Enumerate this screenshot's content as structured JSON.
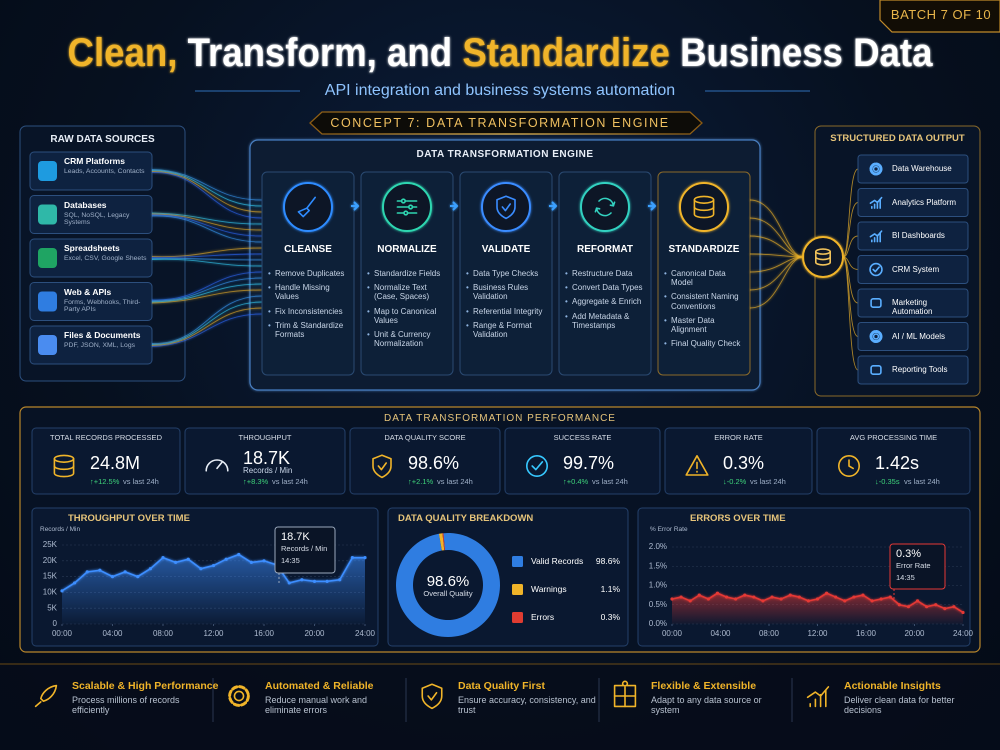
{
  "badge": "BATCH 7 OF 10",
  "title": [
    {
      "text": "Clean,",
      "color": "#f0b429"
    },
    {
      "text": "Transform, and",
      "color": "#ffffff"
    },
    {
      "text": "Standardize",
      "color": "#f0b429"
    },
    {
      "text": "Business Data",
      "color": "#ffffff"
    }
  ],
  "subtitle": "API integration and business systems automation",
  "concept": "CONCEPT 7: DATA TRANSFORMATION ENGINE",
  "sources": {
    "title": "RAW DATA SOURCES",
    "items": [
      {
        "name": "CRM Platforms",
        "desc": "Leads, Accounts, Contacts"
      },
      {
        "name": "Databases",
        "desc": "SQL, NoSQL, Legacy Systems"
      },
      {
        "name": "Spreadsheets",
        "desc": "Excel, CSV, Google Sheets"
      },
      {
        "name": "Web & APIs",
        "desc": "Forms, Webhooks, Third-Party APIs"
      },
      {
        "name": "Files & Documents",
        "desc": "PDF, JSON, XML, Logs"
      }
    ]
  },
  "engine": {
    "title": "DATA TRANSFORMATION ENGINE",
    "steps": [
      {
        "name": "CLEANSE",
        "color": "#2f8cff",
        "items": [
          "Remove Duplicates",
          "Handle Missing Values",
          "Fix Inconsistencies",
          "Trim & Standardize Formats"
        ]
      },
      {
        "name": "NORMALIZE",
        "color": "#2fd6b0",
        "items": [
          "Standardize Fields",
          "Normalize Text (Case, Spaces)",
          "Map to Canonical Values",
          "Unit & Currency Normalization"
        ]
      },
      {
        "name": "VALIDATE",
        "color": "#3a8cff",
        "items": [
          "Data Type Checks",
          "Business Rules Validation",
          "Referential Integrity",
          "Range & Format Validation"
        ]
      },
      {
        "name": "REFORMAT",
        "color": "#33d1c0",
        "items": [
          "Restructure Data",
          "Convert Data Types",
          "Aggregate & Enrich",
          "Add Metadata & Timestamps"
        ]
      },
      {
        "name": "STANDARDIZE",
        "color": "#f0b429",
        "items": [
          "Canonical Data Model",
          "Consistent Naming Conventions",
          "Master Data Alignment",
          "Final Quality Check"
        ]
      }
    ]
  },
  "outputs": {
    "title": "STRUCTURED DATA OUTPUT",
    "items": [
      "Data Warehouse",
      "Analytics Platform",
      "BI Dashboards",
      "CRM System",
      "Marketing Automation",
      "AI / ML Models",
      "Reporting Tools"
    ]
  },
  "performance": {
    "title": "DATA TRANSFORMATION PERFORMANCE",
    "delta_note": "vs last 24h",
    "kpis": [
      {
        "label": "TOTAL RECORDS PROCESSED",
        "value": "24.8M",
        "delta": "+12.5%",
        "trend": "up"
      },
      {
        "label": "THROUGHPUT",
        "value": "18.7K",
        "unit": "Records / Min",
        "delta": "+8.3%",
        "trend": "up"
      },
      {
        "label": "DATA QUALITY SCORE",
        "value": "98.6%",
        "delta": "+2.1%",
        "trend": "up"
      },
      {
        "label": "SUCCESS RATE",
        "value": "99.7%",
        "delta": "+0.4%",
        "trend": "up"
      },
      {
        "label": "ERROR RATE",
        "value": "0.3%",
        "delta": "-0.2%",
        "trend": "down"
      },
      {
        "label": "AVG PROCESSING TIME",
        "value": "1.42s",
        "delta": "-0.35s",
        "trend": "down"
      }
    ]
  },
  "charts": [
    {
      "type": "line",
      "title": "THROUGHPUT OVER TIME",
      "y_label": "Records / Min",
      "color": "#3d8eff",
      "grid": true,
      "x": [
        0,
        1,
        2,
        3,
        4,
        5,
        6,
        7,
        8,
        9,
        10,
        11,
        12,
        13,
        14,
        15,
        16,
        17,
        18,
        19,
        20,
        21,
        22,
        23,
        24
      ],
      "values": [
        10500,
        13000,
        16500,
        17000,
        15000,
        16500,
        15000,
        17500,
        21000,
        19500,
        20500,
        17500,
        18500,
        20500,
        22000,
        19500,
        20000,
        18700,
        13000,
        14000,
        13500,
        13500,
        14000,
        21000,
        21000
      ],
      "xlim": [
        0,
        24
      ],
      "xticks": [
        {
          "value": 0,
          "label": "00:00"
        },
        {
          "value": 4,
          "label": "04:00"
        },
        {
          "value": 8,
          "label": "08:00"
        },
        {
          "value": 12,
          "label": "12:00"
        },
        {
          "value": 16,
          "label": "16:00"
        },
        {
          "value": 20,
          "label": "20:00"
        },
        {
          "value": 24,
          "label": "24:00"
        }
      ],
      "ylim": [
        0,
        25000
      ],
      "yticks": [
        0,
        {
          "value": 5000,
          "label": "5K"
        },
        {
          "value": 10000,
          "label": "10K"
        },
        {
          "value": 15000,
          "label": "15K"
        },
        {
          "value": 20000,
          "label": "20K"
        },
        {
          "value": 25000,
          "label": "25K"
        }
      ],
      "annotation": {
        "value": "18.7K",
        "label": "Records / Min",
        "time": "14:35"
      }
    },
    {
      "type": "donut",
      "title": "DATA QUALITY BREAKDOWN",
      "center_label": "98.6%",
      "center_note": "Overall Quality",
      "categories": [
        "Valid Records",
        "Warnings",
        "Errors"
      ],
      "values": [
        98.6,
        1.1,
        0.3
      ],
      "value_labels": [
        "98.6%",
        "1.1%",
        "0.3%"
      ],
      "colors": [
        "#2f7de1",
        "#f0b429",
        "#e03c31"
      ]
    },
    {
      "type": "line",
      "title": "ERRORS OVER TIME",
      "y_label": "% Error Rate",
      "color": "#e53935",
      "grid": true,
      "x": [
        0,
        0.75,
        1.5,
        2.25,
        3,
        3.75,
        4.5,
        5.25,
        6,
        6.75,
        7.5,
        8.25,
        9,
        9.75,
        10.5,
        11.25,
        12,
        12.75,
        13.5,
        14.25,
        15,
        15.75,
        16.5,
        17.25,
        18,
        18.75,
        19.5,
        20.25,
        21,
        21.75,
        22.5,
        23.25,
        24
      ],
      "values": [
        0.65,
        0.7,
        0.6,
        0.75,
        0.65,
        0.8,
        0.7,
        0.65,
        0.75,
        0.7,
        0.6,
        0.7,
        0.65,
        0.75,
        0.7,
        0.6,
        0.65,
        0.8,
        0.7,
        0.6,
        0.7,
        0.75,
        0.6,
        0.65,
        0.7,
        0.5,
        0.45,
        0.6,
        0.45,
        0.5,
        0.4,
        0.45,
        0.3
      ],
      "xlim": [
        0,
        24
      ],
      "xticks": [
        {
          "value": 0,
          "label": "00:00"
        },
        {
          "value": 4,
          "label": "04:00"
        },
        {
          "value": 8,
          "label": "08:00"
        },
        {
          "value": 12,
          "label": "12:00"
        },
        {
          "value": 16,
          "label": "16:00"
        },
        {
          "value": 20,
          "label": "20:00"
        },
        {
          "value": 24,
          "label": "24:00"
        }
      ],
      "ylim": [
        0,
        2
      ],
      "yticks": [
        {
          "value": 0,
          "label": "0.0%"
        },
        {
          "value": 0.5,
          "label": "0.5%"
        },
        {
          "value": 1,
          "label": "1.0%"
        },
        {
          "value": 1.5,
          "label": "1.5%"
        },
        {
          "value": 2,
          "label": "2.0%"
        }
      ],
      "annotation": {
        "value": "0.3%",
        "label": "Error Rate",
        "time": "14:35"
      }
    }
  ],
  "features": [
    {
      "title": "Scalable & High Performance",
      "desc": "Process millions of records efficiently"
    },
    {
      "title": "Automated & Reliable",
      "desc": "Reduce manual work and eliminate errors"
    },
    {
      "title": "Data Quality First",
      "desc": "Ensure accuracy, consistency, and trust"
    },
    {
      "title": "Flexible & Extensible",
      "desc": "Adapt to any data source or system"
    },
    {
      "title": "Actionable Insights",
      "desc": "Deliver clean data for better decisions"
    }
  ]
}
